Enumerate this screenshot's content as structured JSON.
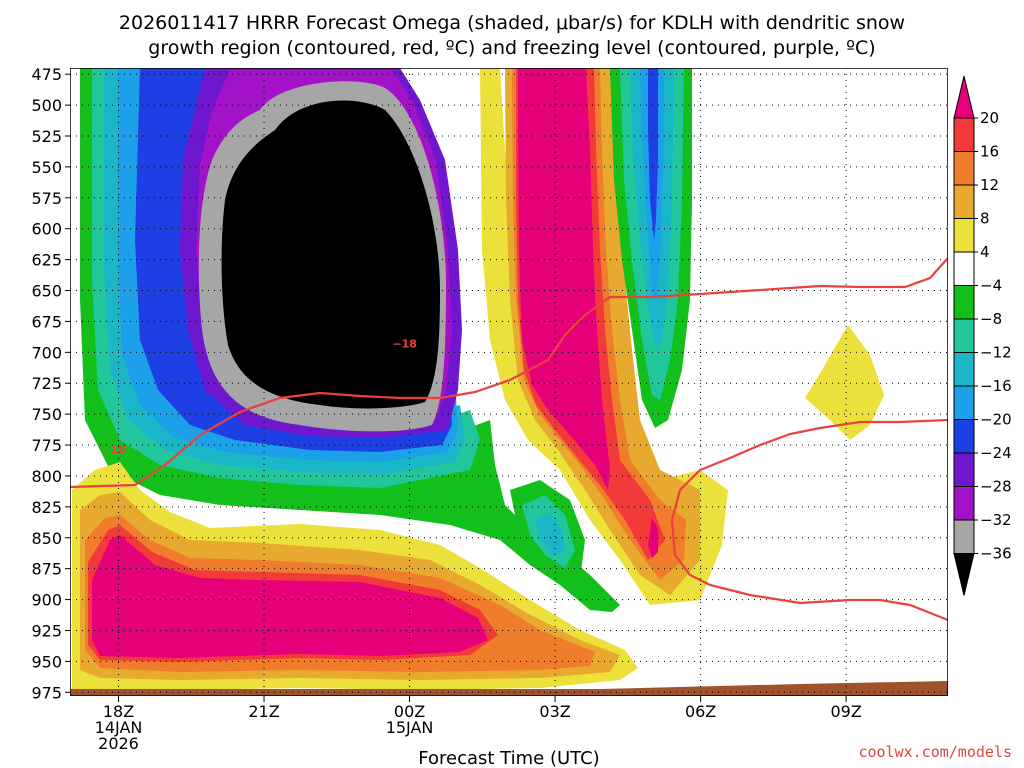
{
  "chart_data": {
    "type": "contour",
    "title_line1": "2026011417 HRRR Forecast Omega (shaded, μbar/s) for KDLH with dendritic snow",
    "title_line2": "growth region (contoured, red, ºC) and freezing level (contoured, purple, ºC)",
    "xlabel": "Forecast Time (UTC)",
    "ylabel": "",
    "credit": "coolwx.com/models",
    "y_axis": {
      "ticks": [
        "475",
        "500",
        "525",
        "550",
        "575",
        "600",
        "625",
        "650",
        "675",
        "700",
        "725",
        "750",
        "775",
        "800",
        "825",
        "850",
        "875",
        "900",
        "925",
        "950",
        "975"
      ],
      "range_hpa": [
        470,
        978
      ]
    },
    "x_axis": {
      "ticks": [
        {
          "hour": 1,
          "line1": "18Z",
          "line2": "14JAN",
          "line3": "2026"
        },
        {
          "hour": 4,
          "line1": "21Z",
          "line2": "",
          "line3": ""
        },
        {
          "hour": 7,
          "line1": "00Z",
          "line2": "15JAN",
          "line3": ""
        },
        {
          "hour": 10,
          "line1": "03Z",
          "line2": "",
          "line3": ""
        },
        {
          "hour": 13,
          "line1": "06Z",
          "line2": "",
          "line3": ""
        },
        {
          "hour": 16,
          "line1": "09Z",
          "line2": "",
          "line3": ""
        }
      ],
      "range_hours": [
        0,
        18.1
      ]
    },
    "colorbar": {
      "labels": [
        "20",
        "16",
        "12",
        "8",
        "4",
        "−4",
        "−8",
        "−12",
        "−16",
        "−20",
        "−24",
        "−28",
        "−32",
        "−36"
      ],
      "colors": [
        "#e6007a",
        "#f23a3a",
        "#ef7d2c",
        "#e8a92f",
        "#ece03a",
        "#ffffff",
        "#13bf1b",
        "#21c79b",
        "#1bb6c8",
        "#1da0ea",
        "#1e3fe4",
        "#6f17cf",
        "#a212c8",
        "#a6a6a6",
        "#000000"
      ]
    },
    "shaded_regions": [
      {
        "name": "omega-outer-green",
        "value": -4,
        "color": "#13bf1b"
      },
      {
        "name": "omega-teal",
        "value": -8,
        "color": "#21c79b"
      },
      {
        "name": "omega-cyan",
        "value": -12,
        "color": "#1bb6c8"
      },
      {
        "name": "omega-sky",
        "value": -16,
        "color": "#1da0ea"
      },
      {
        "name": "omega-blue",
        "value": -20,
        "color": "#1e3fe4"
      },
      {
        "name": "omega-indigo",
        "value": -24,
        "color": "#6f17cf"
      },
      {
        "name": "omega-purple",
        "value": -28,
        "color": "#a212c8"
      },
      {
        "name": "omega-gray",
        "value": -32,
        "color": "#a6a6a6"
      },
      {
        "name": "omega-black",
        "value": -36,
        "color": "#000000"
      },
      {
        "name": "lower-yellow",
        "value": 4,
        "color": "#ece03a"
      },
      {
        "name": "lower-gold",
        "value": 8,
        "color": "#e8a92f"
      },
      {
        "name": "lower-orange",
        "value": 12,
        "color": "#ef7d2c"
      },
      {
        "name": "lower-red",
        "value": 16,
        "color": "#f23a3a"
      },
      {
        "name": "lower-magenta",
        "value": 20,
        "color": "#e6007a"
      }
    ],
    "contours": [
      {
        "label": "−18",
        "color": "#e8413e",
        "label_points": [
          {
            "hour": 0.9,
            "p": 778
          },
          {
            "hour": 6.9,
            "p": 693
          }
        ]
      }
    ]
  }
}
